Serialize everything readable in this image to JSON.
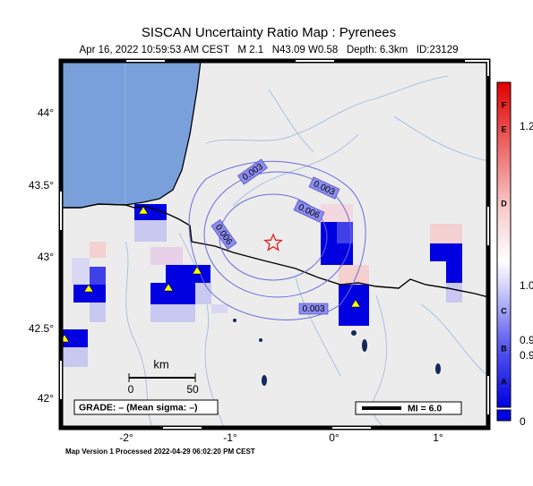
{
  "header": {
    "title": "SISCAN Uncertainty Ratio Map : Pyrenees",
    "subtitle": "Apr 16, 2022 10:59:53 AM CEST   M 2.1   N43.09 W0.58   Depth: 6.3km   ID:23129"
  },
  "axes": {
    "lat_labels": [
      "44°",
      "43.5°",
      "43°",
      "42.5°",
      "42°"
    ],
    "lon_labels": [
      "-2°",
      "-1°",
      "0°",
      "1°"
    ]
  },
  "contour_labels": [
    "0.003",
    "0.003",
    "0.006",
    "0.006",
    "0.003"
  ],
  "colorbar": {
    "labels": [
      "1.2",
      "1.0",
      "0.9",
      "0.9",
      "0"
    ],
    "grades": [
      "F",
      "E",
      "D",
      "C",
      "B",
      "A"
    ]
  },
  "scale": {
    "unit": "km",
    "labels": [
      "0",
      "50"
    ]
  },
  "grade": "GRADE: – (Mean sigma: –)",
  "legend": "MI = 6.0",
  "footer": "Map Version 1 Processed 2022-04-29 06:02:20 PM CEST"
}
